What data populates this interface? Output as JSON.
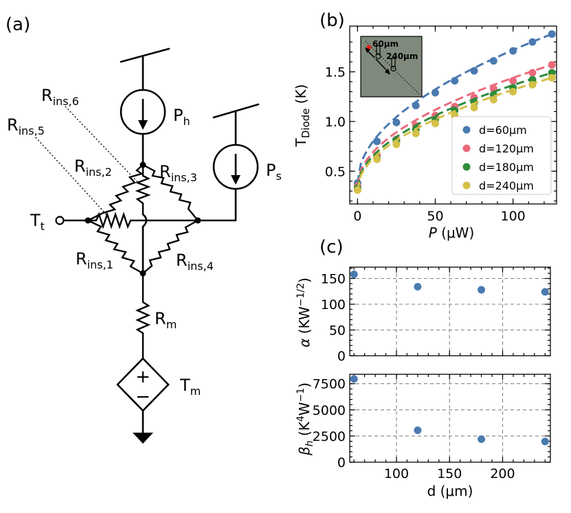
{
  "panels": {
    "a": "(a)",
    "b": "(b)",
    "c": "(c)"
  },
  "circuit": {
    "labels": [
      {
        "main": "R",
        "sub": "ins,6"
      },
      {
        "main": "R",
        "sub": "ins,5"
      },
      {
        "main": "R",
        "sub": "ins,2"
      },
      {
        "main": "R",
        "sub": "ins,3"
      },
      {
        "main": "R",
        "sub": "ins,1"
      },
      {
        "main": "R",
        "sub": "ins,4"
      },
      {
        "main": "P",
        "sub": "h"
      },
      {
        "main": "P",
        "sub": "s"
      },
      {
        "main": "T",
        "sub": "t"
      },
      {
        "main": "R",
        "sub": "m"
      },
      {
        "main": "T",
        "sub": "m"
      }
    ],
    "source_signs": {
      "plus": "+",
      "minus": "−"
    }
  },
  "chart_data": [
    {
      "id": "b",
      "type": "line",
      "ylabel": {
        "main": "T",
        "sub": "Diode",
        "unit": "(K)"
      },
      "xlabel": {
        "main": "P",
        "unit": "(μW)"
      },
      "xlim": [
        -5,
        128
      ],
      "ylim": [
        0.17,
        1.96
      ],
      "xticks": [
        0,
        50,
        100
      ],
      "yticks": [
        0.5,
        1.0,
        1.5
      ],
      "ytick_labels": [
        "0.5",
        "1.0",
        "1.5"
      ],
      "legend_position": "lower-right",
      "x": [
        0,
        12.5,
        25,
        37.5,
        50,
        62.5,
        75,
        87.5,
        100,
        112.5,
        125
      ],
      "series": [
        {
          "name": "d=60μm",
          "color": "#4a7ab0",
          "y": [
            0.38,
            0.8,
            0.99,
            1.16,
            1.29,
            1.41,
            1.51,
            1.61,
            1.71,
            1.8,
            1.88
          ]
        },
        {
          "name": "d=120μm",
          "color": "#ea6a7c",
          "y": [
            0.35,
            0.66,
            0.82,
            0.96,
            1.06,
            1.15,
            1.24,
            1.33,
            1.41,
            1.49,
            1.57
          ]
        },
        {
          "name": "d=180μm",
          "color": "#2e8b3c",
          "y": [
            0.33,
            0.63,
            0.8,
            0.92,
            1.02,
            1.11,
            1.19,
            1.27,
            1.34,
            1.42,
            1.49
          ]
        },
        {
          "name": "d=240μm",
          "color": "#d4c047",
          "y": [
            0.31,
            0.62,
            0.77,
            0.88,
            0.98,
            1.06,
            1.14,
            1.22,
            1.3,
            1.37,
            1.44
          ]
        }
      ],
      "inset": {
        "labels": [
          "60μm",
          "240μm"
        ],
        "background": "#7f8a7c"
      }
    },
    {
      "id": "c-top",
      "type": "scatter",
      "ylabel": {
        "main": "α",
        "unit": "(KW",
        "sup": "−1/2",
        "close": ")"
      },
      "xlim": [
        56,
        245
      ],
      "ylim": [
        0,
        172
      ],
      "xticks": [
        100,
        150,
        200
      ],
      "yticks": [
        0,
        50,
        100,
        150
      ],
      "grid": true,
      "color": "#4a7ab0",
      "x": [
        60,
        120,
        180,
        240
      ],
      "y": [
        158,
        134,
        128,
        124
      ]
    },
    {
      "id": "c-bottom",
      "type": "scatter",
      "ylabel": {
        "main": "β",
        "sub": "h",
        "unit": "(K",
        "sup1": "4",
        "mid": "W",
        "sup2": "−1",
        "close": ")"
      },
      "xlabel": {
        "main": "d",
        "unit": "(μm)"
      },
      "xlim": [
        56,
        245
      ],
      "ylim": [
        0,
        8400
      ],
      "xticks": [
        100,
        150,
        200
      ],
      "yticks": [
        0,
        2500,
        5000,
        7500
      ],
      "grid": true,
      "color": "#4a7ab0",
      "x": [
        60,
        120,
        180,
        240
      ],
      "y": [
        7950,
        3050,
        2200,
        1980
      ]
    }
  ]
}
